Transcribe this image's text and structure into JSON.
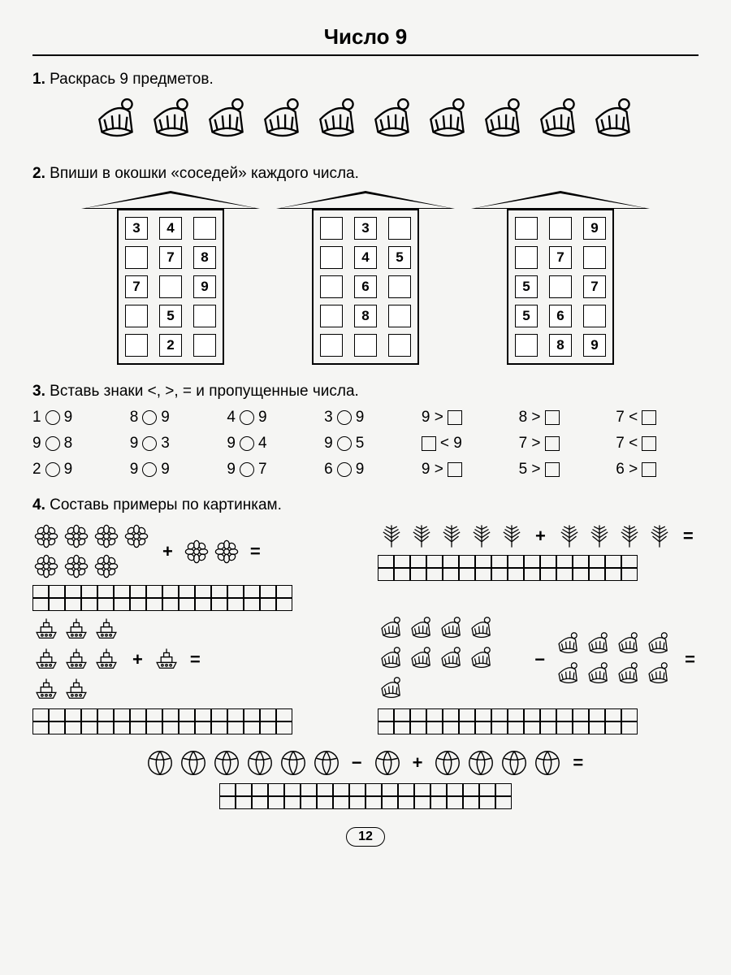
{
  "title": "Число 9",
  "page_number": "12",
  "tasks": {
    "t1": {
      "num": "1.",
      "text": "Раскрась 9 предметов.",
      "hat_count": 10
    },
    "t2": {
      "num": "2.",
      "text": "Впиши в окошки «соседей» каждого числа.",
      "houses": [
        [
          [
            "3",
            "4",
            ""
          ],
          [
            "",
            "7",
            "8"
          ],
          [
            "7",
            "",
            "9"
          ],
          [
            "",
            "5",
            ""
          ],
          [
            "",
            "2",
            ""
          ]
        ],
        [
          [
            "",
            "3",
            ""
          ],
          [
            "",
            "4",
            "5"
          ],
          [
            "",
            "6",
            ""
          ],
          [
            "",
            "8",
            ""
          ],
          [
            "",
            "",
            ""
          ]
        ],
        [
          [
            "",
            "",
            "9"
          ],
          [
            "",
            "7",
            ""
          ],
          [
            "5",
            "",
            "7"
          ],
          [
            "5",
            "6",
            ""
          ],
          [
            "",
            "8",
            "9"
          ]
        ]
      ]
    },
    "t3": {
      "num": "3.",
      "text": "Вставь знаки <, >, = и пропущенные числа.",
      "rows": [
        [
          {
            "a": "1",
            "b": "9",
            "t": "c"
          },
          {
            "a": "8",
            "b": "9",
            "t": "c"
          },
          {
            "a": "4",
            "b": "9",
            "t": "c"
          },
          {
            "a": "3",
            "b": "9",
            "t": "c"
          },
          {
            "a": "9",
            "op": ">",
            "t": "s"
          },
          {
            "a": "8",
            "op": ">",
            "t": "s"
          },
          {
            "a": "7",
            "op": "<",
            "t": "s"
          }
        ],
        [
          {
            "a": "9",
            "b": "8",
            "t": "c"
          },
          {
            "a": "9",
            "b": "3",
            "t": "c"
          },
          {
            "a": "9",
            "b": "4",
            "t": "c"
          },
          {
            "a": "9",
            "b": "5",
            "t": "c"
          },
          {
            "op": "<",
            "b": "9",
            "t": "sl"
          },
          {
            "a": "7",
            "op": ">",
            "t": "s"
          },
          {
            "a": "7",
            "op": "<",
            "t": "s"
          }
        ],
        [
          {
            "a": "2",
            "b": "9",
            "t": "c"
          },
          {
            "a": "9",
            "b": "9",
            "t": "c"
          },
          {
            "a": "9",
            "b": "7",
            "t": "c"
          },
          {
            "a": "6",
            "b": "9",
            "t": "c"
          },
          {
            "a": "9",
            "op": ">",
            "t": "s"
          },
          {
            "a": "5",
            "op": ">",
            "t": "s"
          },
          {
            "a": "6",
            "op": ">",
            "t": "s"
          }
        ]
      ]
    },
    "t4": {
      "num": "4.",
      "text": "Составь примеры по картинкам.",
      "problems": [
        {
          "left_icon": "flower",
          "left_n": 7,
          "left_wrap": 4,
          "op": "+",
          "right_icon": "flower",
          "right_n": 2,
          "grid_cols": 16
        },
        {
          "left_icon": "tree",
          "left_n": 5,
          "left_wrap": 5,
          "op": "+",
          "right_icon": "tree",
          "right_n": 4,
          "grid_cols": 16
        },
        {
          "left_icon": "ship",
          "left_n": 8,
          "left_wrap": 3,
          "op": "+",
          "right_icon": "ship",
          "right_n": 1,
          "grid_cols": 16
        },
        {
          "left_icon": "hat",
          "left_n": 9,
          "left_wrap": 5,
          "op": "−",
          "right_icon": "hat",
          "right_n": 8,
          "right_wrap": 4,
          "grid_cols": 16
        }
      ],
      "final": {
        "left_icon": "ball",
        "left_n": 6,
        "op1": "−",
        "mid_icon": "ball",
        "mid_n": 1,
        "op2": "+",
        "right_icon": "ball",
        "right_n": 4,
        "grid_cols": 18
      }
    }
  },
  "style": {
    "stroke": "#000000",
    "bg": "#f5f5f3",
    "icon_size": 40,
    "small_icon": 34
  }
}
